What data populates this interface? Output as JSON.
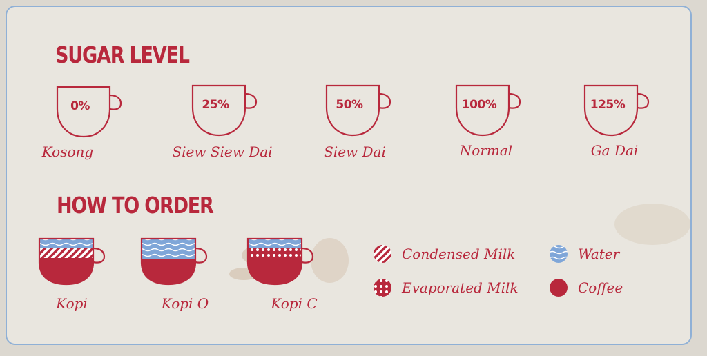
{
  "sugar": {
    "title": "SUGAR LEVEL",
    "levels": [
      {
        "percent": "0%",
        "name": "Kosong"
      },
      {
        "percent": "25%",
        "name": "Siew Siew Dai"
      },
      {
        "percent": "50%",
        "name": "Siew Dai"
      },
      {
        "percent": "100%",
        "name": "Normal"
      },
      {
        "percent": "125%",
        "name": "Ga Dai"
      }
    ]
  },
  "order": {
    "title": "HOW TO ORDER",
    "drinks": [
      {
        "name": "Kopi",
        "layers": [
          "water",
          "condensed-milk",
          "coffee"
        ]
      },
      {
        "name": "Kopi O",
        "layers": [
          "water",
          "coffee"
        ]
      },
      {
        "name": "Kopi C",
        "layers": [
          "water",
          "evaporated-milk",
          "coffee"
        ]
      }
    ]
  },
  "legend": [
    {
      "label": "Condensed Milk",
      "icon": "striped-circle-icon"
    },
    {
      "label": "Water",
      "icon": "wave-circle-icon"
    },
    {
      "label": "Evaporated Milk",
      "icon": "dotted-circle-icon"
    },
    {
      "label": "Coffee",
      "icon": "solid-circle-icon"
    }
  ],
  "colors": {
    "red": "#b8283c",
    "blue": "#7fa6d8",
    "border": "#8fb0d6",
    "paper": "#e9e6df"
  }
}
